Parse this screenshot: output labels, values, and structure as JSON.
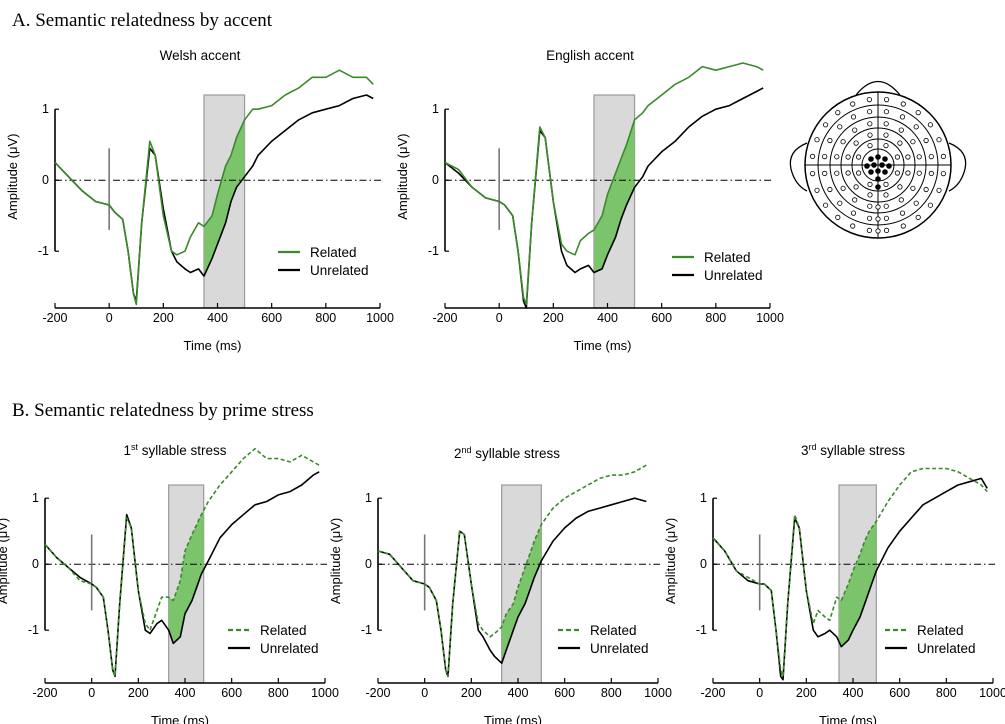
{
  "figure": {
    "section_a_title": "A. Semantic relatedness by accent",
    "section_b_title": "B. Semantic relatedness by prime stress"
  },
  "style": {
    "related_color": "#3a8a2a",
    "unrelated_color": "#000000",
    "fill_color": "#7cc46c",
    "window_color": "#d9d9d9",
    "window_stroke": "#9a9a9a",
    "scalp_electrode_fill_posterior": "#000000",
    "scalp_electrode_fill_other": "#ffffff"
  },
  "chart_data": [
    {
      "type": "line",
      "panel": "A1",
      "title": "Welsh accent",
      "xlabel": "Time (ms)",
      "ylabel": "Amplitude (μV)",
      "xlim": [
        -200,
        1000
      ],
      "ylim": [
        -1.8,
        1.2
      ],
      "xticks": [
        -200,
        0,
        200,
        400,
        600,
        800,
        1000
      ],
      "yticks": [
        1,
        0,
        -1
      ],
      "analysis_window": [
        350,
        500
      ],
      "legend": {
        "related": "Related",
        "unrelated": "Unrelated"
      },
      "series": [
        {
          "name": "Related",
          "style": "solid",
          "x": [
            -200,
            -150,
            -100,
            -50,
            0,
            20,
            50,
            70,
            90,
            100,
            120,
            150,
            170,
            200,
            230,
            250,
            280,
            300,
            330,
            350,
            380,
            400,
            430,
            450,
            470,
            500,
            530,
            550,
            600,
            650,
            700,
            750,
            800,
            850,
            900,
            950,
            975
          ],
          "y": [
            0.25,
            0.05,
            -0.15,
            -0.3,
            -0.35,
            -0.45,
            -0.55,
            -1.0,
            -1.6,
            -1.75,
            -0.6,
            0.55,
            0.35,
            -0.5,
            -1.0,
            -1.05,
            -1.0,
            -0.8,
            -0.6,
            -0.65,
            -0.5,
            -0.2,
            0.2,
            0.35,
            0.6,
            0.85,
            1.0,
            1.0,
            1.05,
            1.2,
            1.3,
            1.45,
            1.45,
            1.55,
            1.45,
            1.45,
            1.35
          ]
        },
        {
          "name": "Unrelated",
          "style": "solid",
          "x": [
            -200,
            -150,
            -100,
            -50,
            0,
            20,
            50,
            70,
            90,
            100,
            120,
            150,
            170,
            200,
            230,
            250,
            280,
            300,
            330,
            350,
            380,
            400,
            430,
            450,
            470,
            500,
            530,
            550,
            600,
            650,
            700,
            750,
            800,
            850,
            900,
            950,
            975
          ],
          "y": [
            0.25,
            0.05,
            -0.15,
            -0.3,
            -0.35,
            -0.45,
            -0.55,
            -1.0,
            -1.6,
            -1.7,
            -0.6,
            0.45,
            0.35,
            -0.4,
            -1.0,
            -1.15,
            -1.25,
            -1.3,
            -1.25,
            -1.35,
            -1.1,
            -0.9,
            -0.6,
            -0.3,
            -0.1,
            0.05,
            0.2,
            0.35,
            0.55,
            0.7,
            0.85,
            0.95,
            1.0,
            1.05,
            1.15,
            1.2,
            1.15
          ]
        }
      ]
    },
    {
      "type": "line",
      "panel": "A2",
      "title": "English accent",
      "xlabel": "Time (ms)",
      "ylabel": "Amplitude (μV)",
      "xlim": [
        -200,
        1000
      ],
      "ylim": [
        -1.8,
        1.2
      ],
      "xticks": [
        -200,
        0,
        200,
        400,
        600,
        800,
        1000
      ],
      "yticks": [
        1,
        0,
        -1
      ],
      "analysis_window": [
        350,
        500
      ],
      "legend": {
        "related": "Related",
        "unrelated": "Unrelated"
      },
      "series": [
        {
          "name": "Related",
          "style": "solid",
          "x": [
            -200,
            -150,
            -100,
            -50,
            0,
            20,
            50,
            70,
            90,
            100,
            120,
            150,
            170,
            200,
            230,
            250,
            280,
            300,
            330,
            350,
            380,
            400,
            430,
            450,
            470,
            500,
            530,
            550,
            600,
            650,
            700,
            750,
            800,
            850,
            900,
            950,
            975
          ],
          "y": [
            0.25,
            0.15,
            -0.1,
            -0.25,
            -0.3,
            -0.35,
            -0.5,
            -1.0,
            -1.65,
            -1.75,
            -0.6,
            0.75,
            0.6,
            -0.3,
            -0.9,
            -1.0,
            -1.05,
            -0.85,
            -0.75,
            -0.7,
            -0.5,
            -0.2,
            0.1,
            0.3,
            0.5,
            0.85,
            0.95,
            1.05,
            1.2,
            1.35,
            1.45,
            1.6,
            1.55,
            1.6,
            1.65,
            1.6,
            1.55
          ]
        },
        {
          "name": "Unrelated",
          "style": "solid",
          "x": [
            -200,
            -150,
            -100,
            -50,
            0,
            20,
            50,
            70,
            90,
            100,
            120,
            150,
            170,
            200,
            230,
            250,
            280,
            300,
            330,
            350,
            380,
            400,
            430,
            450,
            470,
            500,
            530,
            550,
            600,
            650,
            700,
            750,
            800,
            850,
            900,
            950,
            975
          ],
          "y": [
            0.25,
            0.1,
            -0.1,
            -0.25,
            -0.3,
            -0.35,
            -0.5,
            -1.0,
            -1.7,
            -1.8,
            -0.6,
            0.7,
            0.6,
            -0.3,
            -1.0,
            -1.2,
            -1.3,
            -1.25,
            -1.2,
            -1.3,
            -1.25,
            -1.05,
            -0.8,
            -0.55,
            -0.35,
            -0.1,
            0.05,
            0.2,
            0.4,
            0.55,
            0.75,
            0.9,
            1.0,
            1.05,
            1.15,
            1.25,
            1.3
          ]
        }
      ]
    },
    {
      "type": "line",
      "panel": "B1",
      "title_prefix": "1",
      "title_sup": "st",
      "title_suffix": " syllable stress",
      "xlabel": "Time (ms)",
      "ylabel": "Amplitude (μV)",
      "xlim": [
        -200,
        1000
      ],
      "ylim": [
        -1.8,
        1.2
      ],
      "xticks": [
        -200,
        0,
        200,
        400,
        600,
        800,
        1000
      ],
      "yticks": [
        1,
        0,
        -1
      ],
      "analysis_window": [
        330,
        480
      ],
      "legend": {
        "related": "Related",
        "unrelated": "Unrelated"
      },
      "series": [
        {
          "name": "Related",
          "style": "dashed",
          "x": [
            -200,
            -150,
            -100,
            -50,
            0,
            20,
            50,
            70,
            90,
            100,
            120,
            150,
            170,
            200,
            230,
            250,
            280,
            300,
            330,
            350,
            380,
            400,
            430,
            450,
            470,
            500,
            550,
            600,
            650,
            700,
            750,
            800,
            850,
            900,
            950,
            975
          ],
          "y": [
            0.3,
            0.1,
            -0.05,
            -0.25,
            -0.3,
            -0.35,
            -0.5,
            -1.0,
            -1.6,
            -1.7,
            -0.6,
            0.7,
            0.55,
            -0.4,
            -0.9,
            -1.0,
            -0.7,
            -0.5,
            -0.5,
            -0.55,
            -0.25,
            0.2,
            0.45,
            0.6,
            0.75,
            0.95,
            1.2,
            1.4,
            1.6,
            1.75,
            1.6,
            1.6,
            1.55,
            1.65,
            1.55,
            1.5
          ]
        },
        {
          "name": "Unrelated",
          "style": "solid",
          "x": [
            -200,
            -150,
            -100,
            -50,
            0,
            20,
            50,
            70,
            90,
            100,
            120,
            150,
            170,
            200,
            230,
            250,
            280,
            300,
            330,
            350,
            380,
            400,
            430,
            450,
            470,
            500,
            550,
            600,
            650,
            700,
            750,
            800,
            850,
            900,
            950,
            975
          ],
          "y": [
            0.3,
            0.1,
            -0.05,
            -0.2,
            -0.3,
            -0.35,
            -0.5,
            -1.0,
            -1.6,
            -1.7,
            -0.6,
            0.75,
            0.55,
            -0.4,
            -1.0,
            -1.05,
            -0.9,
            -0.85,
            -1.0,
            -1.2,
            -1.1,
            -0.75,
            -0.55,
            -0.35,
            -0.15,
            0.05,
            0.4,
            0.6,
            0.75,
            0.9,
            0.95,
            1.05,
            1.1,
            1.2,
            1.35,
            1.4
          ]
        }
      ]
    },
    {
      "type": "line",
      "panel": "B2",
      "title_prefix": "2",
      "title_sup": "nd",
      "title_suffix": " syllable stress",
      "xlabel": "Time (ms)",
      "ylabel": "Amplitude (μV)",
      "xlim": [
        -200,
        1000
      ],
      "ylim": [
        -1.8,
        1.2
      ],
      "xticks": [
        -200,
        0,
        200,
        400,
        600,
        800,
        1000
      ],
      "yticks": [
        1,
        0,
        -1
      ],
      "analysis_window": [
        330,
        500
      ],
      "legend": {
        "related": "Related",
        "unrelated": "Unrelated"
      },
      "series": [
        {
          "name": "Related",
          "style": "dashed",
          "x": [
            -200,
            -150,
            -100,
            -50,
            0,
            20,
            50,
            70,
            90,
            100,
            120,
            150,
            170,
            200,
            230,
            250,
            280,
            300,
            330,
            350,
            380,
            400,
            430,
            450,
            470,
            500,
            550,
            600,
            650,
            700,
            750,
            800,
            850,
            900,
            950
          ],
          "y": [
            0.2,
            0.15,
            -0.05,
            -0.25,
            -0.3,
            -0.35,
            -0.55,
            -1.0,
            -1.6,
            -1.7,
            -0.6,
            0.5,
            0.45,
            -0.3,
            -0.9,
            -1.0,
            -1.1,
            -1.05,
            -0.95,
            -0.75,
            -0.6,
            -0.35,
            -0.05,
            0.15,
            0.35,
            0.6,
            0.85,
            1.0,
            1.1,
            1.2,
            1.3,
            1.35,
            1.35,
            1.4,
            1.5
          ]
        },
        {
          "name": "Unrelated",
          "style": "solid",
          "x": [
            -200,
            -150,
            -100,
            -50,
            0,
            20,
            50,
            70,
            90,
            100,
            120,
            150,
            170,
            200,
            230,
            250,
            280,
            300,
            330,
            350,
            380,
            400,
            430,
            450,
            470,
            500,
            550,
            600,
            650,
            700,
            750,
            800,
            850,
            900,
            950
          ],
          "y": [
            0.2,
            0.15,
            -0.05,
            -0.25,
            -0.3,
            -0.35,
            -0.55,
            -1.0,
            -1.6,
            -1.7,
            -0.6,
            0.5,
            0.45,
            -0.3,
            -1.0,
            -1.1,
            -1.3,
            -1.4,
            -1.5,
            -1.3,
            -1.0,
            -0.8,
            -0.6,
            -0.4,
            -0.2,
            0.05,
            0.35,
            0.55,
            0.7,
            0.8,
            0.85,
            0.9,
            0.95,
            1.0,
            0.95
          ]
        }
      ]
    },
    {
      "type": "line",
      "panel": "B3",
      "title_prefix": "3",
      "title_sup": "rd",
      "title_suffix": " syllable stress",
      "xlabel": "Time (ms)",
      "ylabel": "Amplitude (μV)",
      "xlim": [
        -200,
        1000
      ],
      "ylim": [
        -1.8,
        1.2
      ],
      "xticks": [
        -200,
        0,
        200,
        400,
        600,
        800,
        1000
      ],
      "yticks": [
        1,
        0,
        -1
      ],
      "analysis_window": [
        340,
        500
      ],
      "legend": {
        "related": "Related",
        "unrelated": "Unrelated"
      },
      "series": [
        {
          "name": "Related",
          "style": "dashed",
          "x": [
            -200,
            -150,
            -100,
            -50,
            0,
            20,
            50,
            70,
            90,
            100,
            120,
            150,
            170,
            200,
            230,
            250,
            280,
            300,
            330,
            350,
            380,
            400,
            430,
            450,
            470,
            500,
            550,
            600,
            650,
            700,
            750,
            800,
            850,
            900,
            950,
            975
          ],
          "y": [
            0.4,
            0.2,
            -0.1,
            -0.2,
            -0.3,
            -0.3,
            -0.4,
            -1.0,
            -1.6,
            -1.7,
            -0.6,
            0.75,
            0.55,
            -0.4,
            -0.9,
            -0.7,
            -0.8,
            -0.85,
            -0.5,
            -0.55,
            -0.3,
            -0.1,
            0.15,
            0.35,
            0.5,
            0.65,
            0.95,
            1.2,
            1.4,
            1.45,
            1.45,
            1.45,
            1.4,
            1.3,
            1.2,
            1.1
          ]
        },
        {
          "name": "Unrelated",
          "style": "solid",
          "x": [
            -200,
            -150,
            -100,
            -50,
            0,
            20,
            50,
            70,
            90,
            100,
            120,
            150,
            170,
            200,
            230,
            250,
            280,
            300,
            330,
            350,
            380,
            400,
            430,
            450,
            470,
            500,
            550,
            600,
            650,
            700,
            750,
            800,
            850,
            900,
            950,
            975
          ],
          "y": [
            0.4,
            0.2,
            -0.1,
            -0.25,
            -0.3,
            -0.3,
            -0.4,
            -1.0,
            -1.7,
            -1.75,
            -0.6,
            0.7,
            0.55,
            -0.4,
            -1.0,
            -1.1,
            -1.05,
            -1.0,
            -1.1,
            -1.25,
            -1.15,
            -1.0,
            -0.8,
            -0.6,
            -0.4,
            -0.1,
            0.25,
            0.5,
            0.7,
            0.9,
            1.0,
            1.1,
            1.2,
            1.25,
            1.3,
            1.15
          ]
        }
      ]
    }
  ]
}
